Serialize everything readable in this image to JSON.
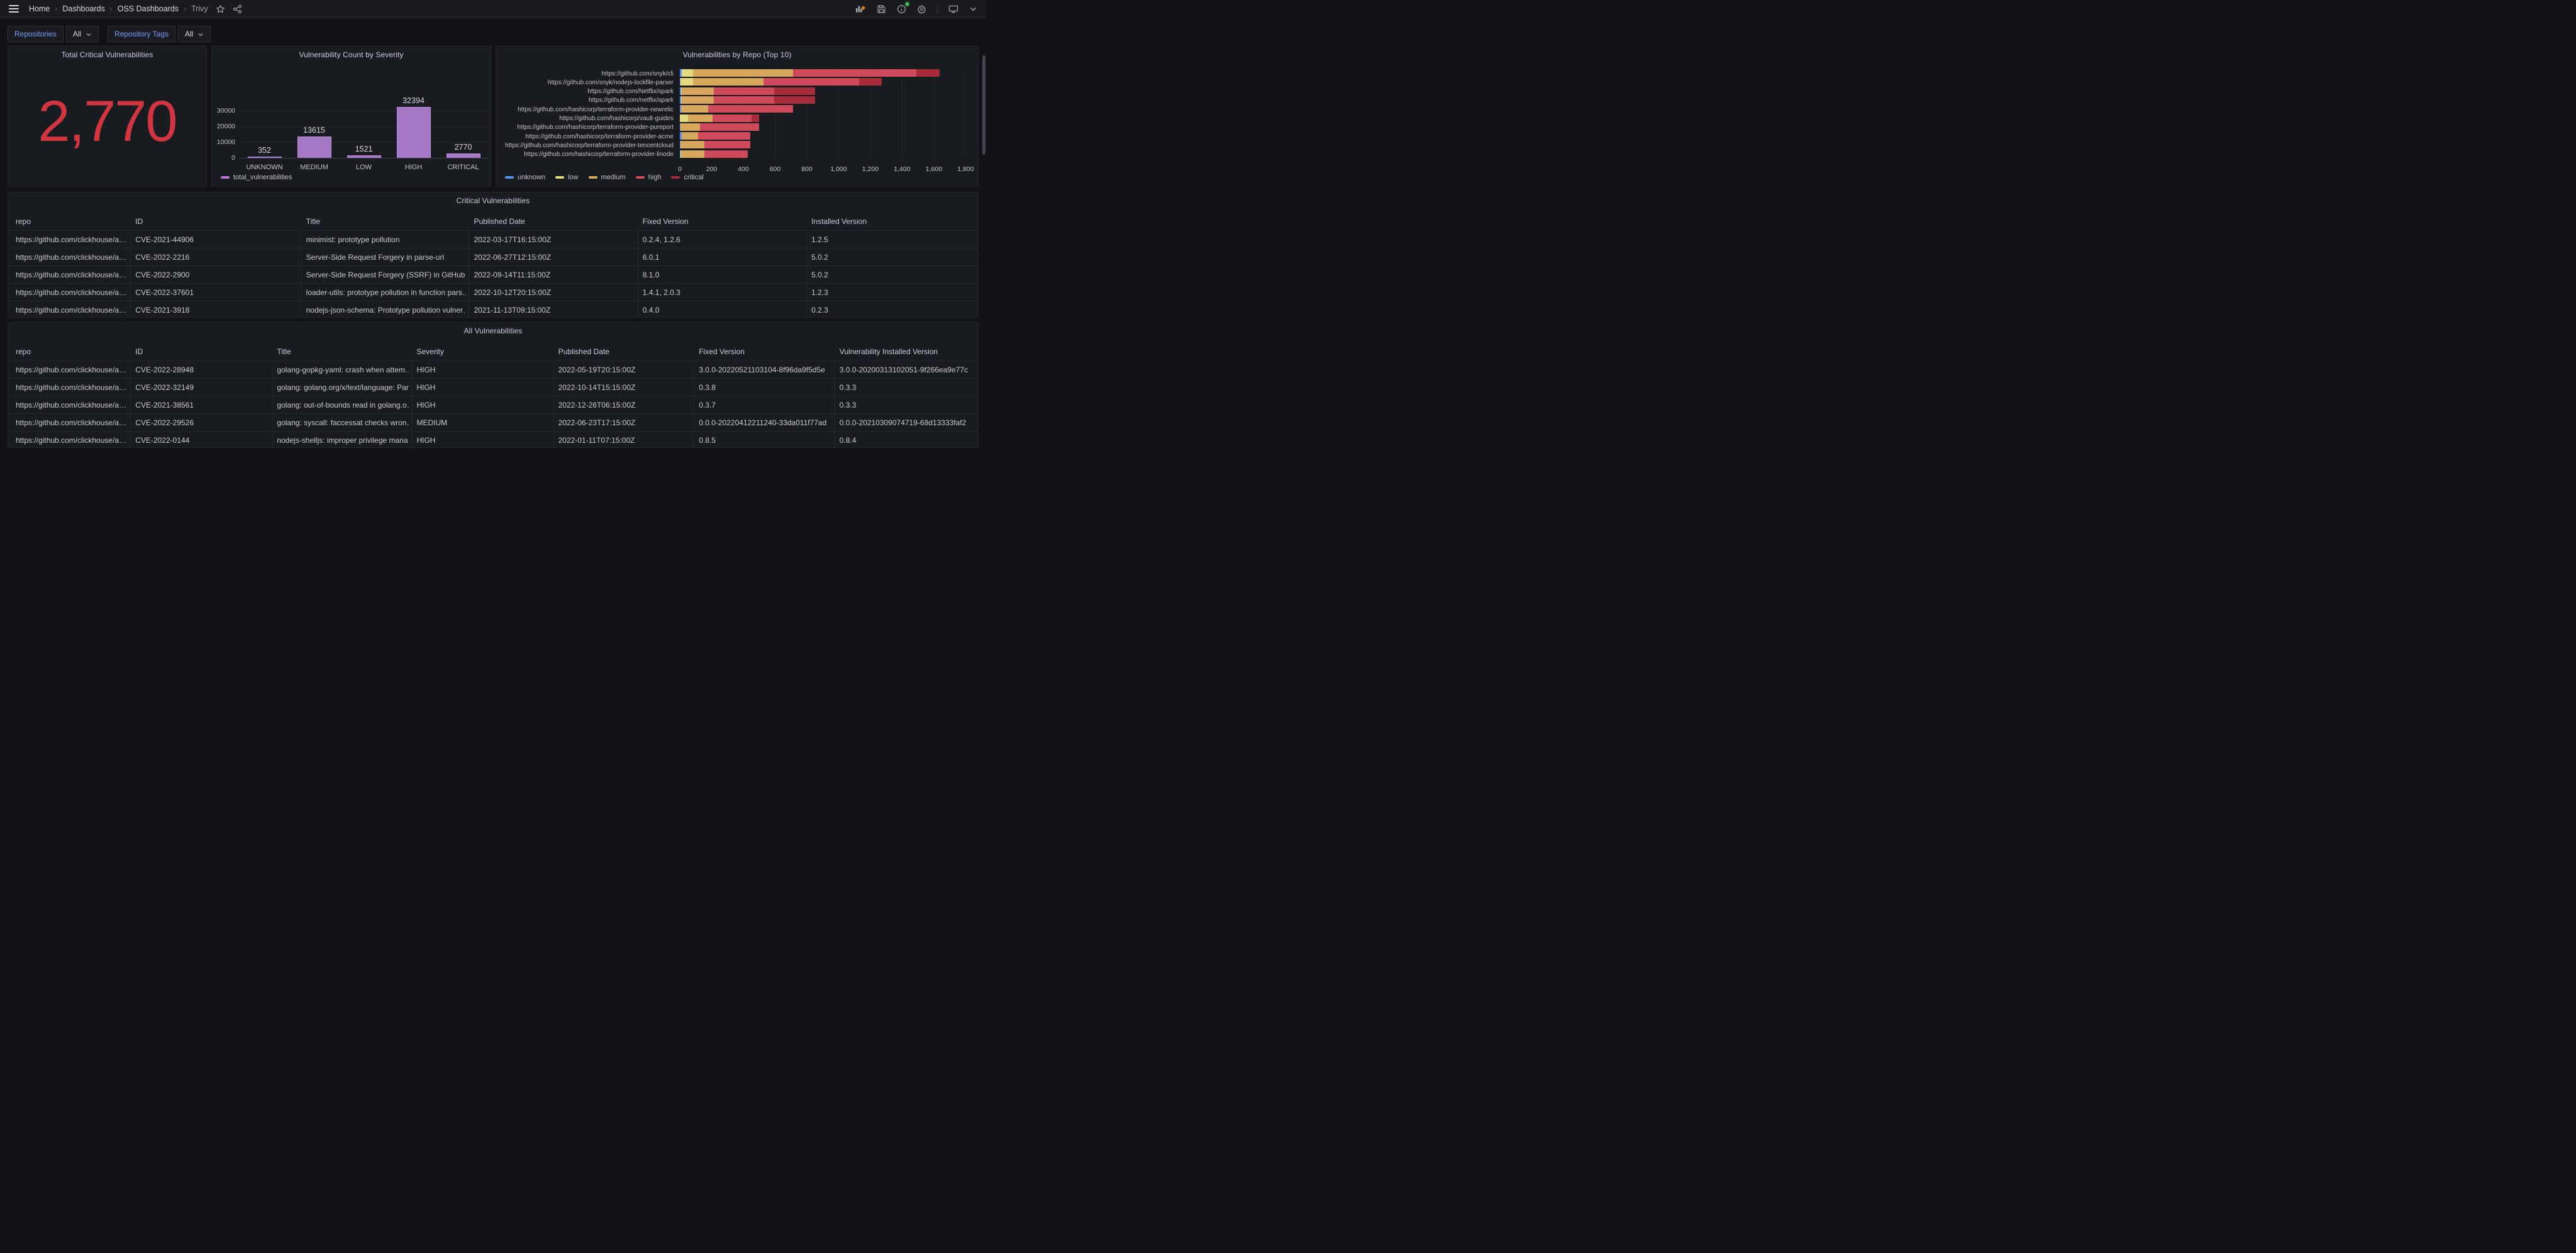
{
  "nav": {
    "breadcrumb": [
      "Home",
      "Dashboards",
      "OSS Dashboards",
      "Trivy"
    ],
    "icons": [
      "hamburger",
      "star",
      "share",
      "add-panel",
      "save",
      "info",
      "settings",
      "kiosk-tv",
      "chevron-down"
    ]
  },
  "filters": [
    {
      "label": "Repositories",
      "value": "All"
    },
    {
      "label": "Repository Tags",
      "value": "All"
    }
  ],
  "panels": {
    "stat": {
      "title": "Total Critical Vulnerabilities",
      "value": "2,770",
      "color": "#D03540"
    },
    "critical_table": {
      "title": "Critical Vulnerabilities",
      "columns": [
        "repo",
        "ID",
        "Title",
        "Published Date",
        "Fixed Version",
        "Installed Version"
      ],
      "rows": [
        [
          "https://github.com/clickhouse/a…",
          "CVE-2021-44906",
          "minimist: prototype pollution",
          "2022-03-17T16:15:00Z",
          "0.2.4, 1.2.6",
          "1.2.5"
        ],
        [
          "https://github.com/clickhouse/a…",
          "CVE-2022-2216",
          "Server-Side Request Forgery in parse-url",
          "2022-06-27T12:15:00Z",
          "6.0.1",
          "5.0.2"
        ],
        [
          "https://github.com/clickhouse/a…",
          "CVE-2022-2900",
          "Server-Side Request Forgery (SSRF) in GitHub r…",
          "2022-09-14T11:15:00Z",
          "8.1.0",
          "5.0.2"
        ],
        [
          "https://github.com/clickhouse/a…",
          "CVE-2022-37601",
          "loader-utils: prototype pollution in function pars…",
          "2022-10-12T20:15:00Z",
          "1.4.1, 2.0.3",
          "1.2.3"
        ],
        [
          "https://github.com/clickhouse/a…",
          "CVE-2021-3918",
          "nodejs-json-schema: Prototype pollution vulner…",
          "2021-11-13T09:15:00Z",
          "0.4.0",
          "0.2.3"
        ]
      ]
    },
    "all_table": {
      "title": "All Vulnerabilities",
      "columns": [
        "repo",
        "ID",
        "Title",
        "Severity",
        "Published Date",
        "Fixed Version",
        "Vulnerability Installed Version"
      ],
      "rows": [
        [
          "https://github.com/clickhouse/a…",
          "CVE-2022-28948",
          "golang-gopkg-yaml: crash when attem…",
          "HIGH",
          "2022-05-19T20:15:00Z",
          "3.0.0-20220521103104-8f96da9f5d5e",
          "3.0.0-20200313102051-9f266ea9e77c"
        ],
        [
          "https://github.com/clickhouse/a…",
          "CVE-2022-32149",
          "golang: golang.org/x/text/language: Par…",
          "HIGH",
          "2022-10-14T15:15:00Z",
          "0.3.8",
          "0.3.3"
        ],
        [
          "https://github.com/clickhouse/a…",
          "CVE-2021-38561",
          "golang: out-of-bounds read in golang.o…",
          "HIGH",
          "2022-12-26T06:15:00Z",
          "0.3.7",
          "0.3.3"
        ],
        [
          "https://github.com/clickhouse/a…",
          "CVE-2022-29526",
          "golang: syscall: faccessat checks wron…",
          "MEDIUM",
          "2022-06-23T17:15:00Z",
          "0.0.0-20220412211240-33da011f77ad",
          "0.0.0-20210309074719-68d13333faf2"
        ],
        [
          "https://github.com/clickhouse/a…",
          "CVE-2022-0144",
          "nodejs-shelljs: improper privilege mana…",
          "HIGH",
          "2022-01-11T07:15:00Z",
          "0.8.5",
          "0.8.4"
        ]
      ]
    }
  },
  "chart_data": [
    {
      "type": "bar",
      "title": "Vulnerability Count by Severity",
      "categories": [
        "UNKNOWN",
        "MEDIUM",
        "LOW",
        "HIGH",
        "CRITICAL"
      ],
      "values": [
        352,
        13615,
        1521,
        32394,
        2770
      ],
      "value_labels": [
        "352",
        "13615",
        "1521",
        "32394",
        "2770"
      ],
      "ylim": [
        0,
        35000
      ],
      "yticks": [
        0,
        10000,
        20000,
        30000
      ],
      "ytick_labels": [
        "0",
        "10000",
        "20000",
        "30000"
      ],
      "grid": true,
      "legend": [
        "total_vulnerabilities"
      ],
      "legend_position": "bottom-left",
      "bar_fill": "#A478C5",
      "bar_border": "#C08FDB",
      "legend_color": "#B877D9"
    },
    {
      "type": "bar",
      "orientation": "horizontal",
      "stacked": true,
      "title": "Vulnerabilities by Repo (Top 10)",
      "categories": [
        "https://github.com/snyk/cli",
        "https://github.com/snyk/nodejs-lockfile-parser",
        "https://github.com/Netflix/spark",
        "https://github.com/netflix/spark",
        "https://github.com/hashicorp/terraform-provider-newrelic",
        "https://github.com/hashicorp/vault-guides",
        "https://github.com/hashicorp/terraform-provider-pureport",
        "https://github.com/hashicorp/terraform-provider-acme",
        "https://github.com/hashicorp/terraform-provider-tencentcloud",
        "https://github.com/hashicorp/terraform-provider-linode"
      ],
      "series": [
        {
          "name": "unknown",
          "color": "#5794F2",
          "values": [
            10,
            2,
            8,
            8,
            8,
            0,
            3,
            10,
            3,
            2
          ]
        },
        {
          "name": "low",
          "color": "#E3D97E",
          "values": [
            75,
            80,
            5,
            5,
            0,
            50,
            0,
            0,
            0,
            4
          ]
        },
        {
          "name": "medium",
          "color": "#D8A75E",
          "values": [
            630,
            445,
            200,
            200,
            170,
            155,
            125,
            105,
            150,
            148
          ]
        },
        {
          "name": "high",
          "color": "#CE4A5B",
          "values": [
            775,
            600,
            380,
            380,
            535,
            245,
            370,
            330,
            290,
            272
          ]
        },
        {
          "name": "critical",
          "color": "#A52C38",
          "values": [
            145,
            145,
            260,
            260,
            0,
            50,
            0,
            0,
            0,
            0
          ]
        }
      ],
      "xlim": [
        0,
        1830
      ],
      "xticks": [
        0,
        200,
        400,
        600,
        800,
        1000,
        1200,
        1400,
        1600,
        1800
      ],
      "xtick_labels": [
        "0",
        "200",
        "400",
        "600",
        "800",
        "1,000",
        "1,200",
        "1,400",
        "1,600",
        "1,800"
      ],
      "grid": true,
      "legend_position": "bottom-left"
    }
  ]
}
